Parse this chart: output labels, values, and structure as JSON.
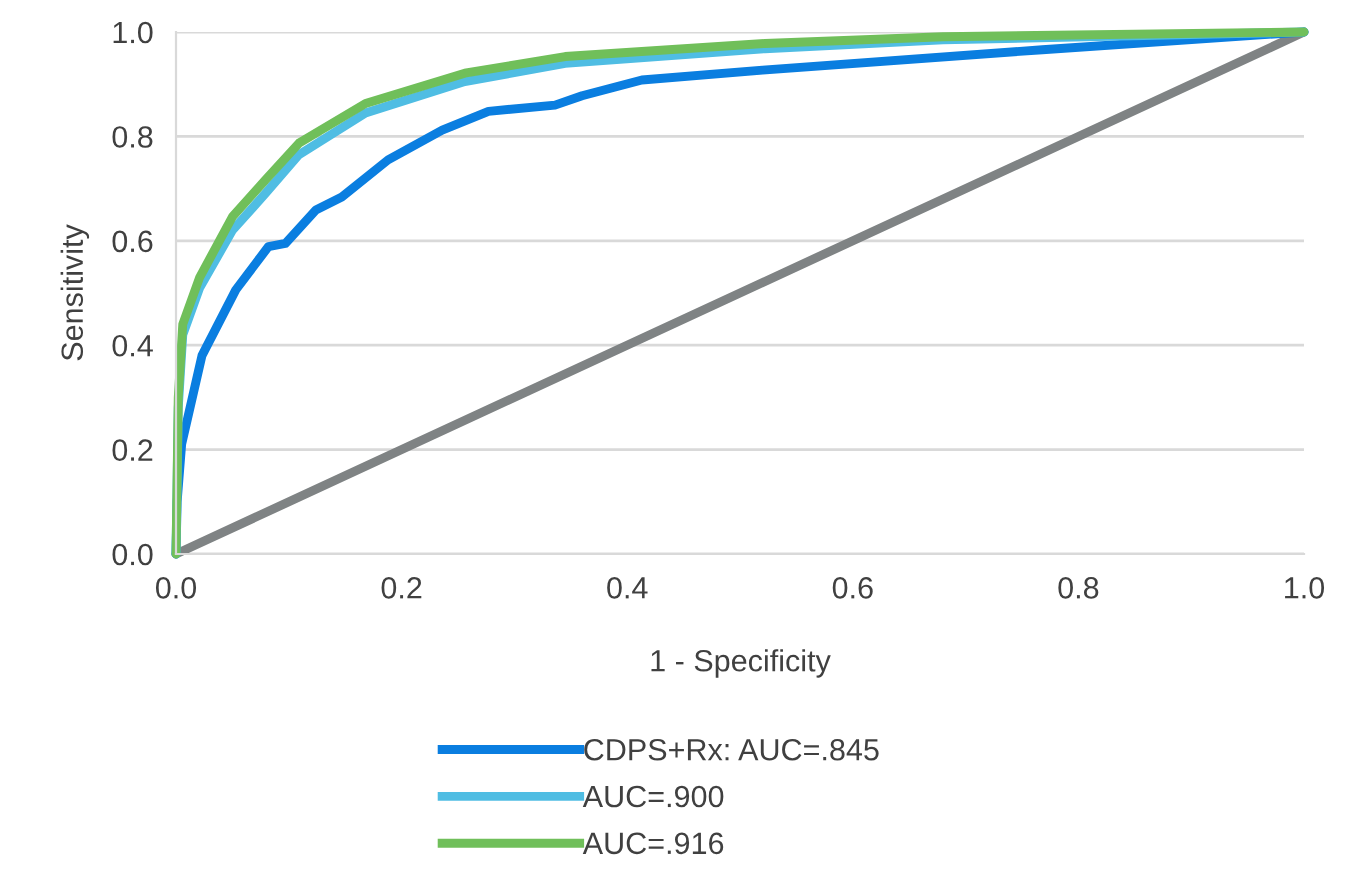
{
  "chart_data": {
    "type": "line",
    "xlabel": "1 - Specificity",
    "ylabel": "Sensitivity",
    "xlim": [
      0,
      1
    ],
    "ylim": [
      0,
      1
    ],
    "xticks": [
      {
        "value": 0,
        "label": "0.0"
      },
      {
        "value": 0.2,
        "label": "0.2"
      },
      {
        "value": 0.4,
        "label": "0.4"
      },
      {
        "value": 0.6,
        "label": "0.6"
      },
      {
        "value": 0.8,
        "label": "0.8"
      },
      {
        "value": 1,
        "label": "1.0"
      }
    ],
    "yticks": [
      {
        "value": 0,
        "label": "0.0"
      },
      {
        "value": 0.2,
        "label": "0.2"
      },
      {
        "value": 0.4,
        "label": "0.4"
      },
      {
        "value": 0.6,
        "label": "0.6"
      },
      {
        "value": 0.8,
        "label": "0.8"
      },
      {
        "value": 1,
        "label": "1.0"
      }
    ],
    "grid": "y",
    "legend": "bottom",
    "marker": "none",
    "line_style": "solid",
    "series": [
      {
        "color": "#7f8384",
        "x": [
          0,
          1
        ],
        "values": [
          0,
          1
        ]
      },
      {
        "name": "CDPS+Rx: AUC=.845",
        "color": "#0a7ee0",
        "x": [
          0,
          0.001,
          0.005,
          0.023,
          0.053,
          0.082,
          0.097,
          0.124,
          0.147,
          0.188,
          0.236,
          0.277,
          0.336,
          0.36,
          0.413,
          0.52,
          0.768,
          1
        ],
        "values": [
          0,
          0.1,
          0.21,
          0.38,
          0.506,
          0.589,
          0.595,
          0.659,
          0.684,
          0.755,
          0.812,
          0.848,
          0.86,
          0.878,
          0.908,
          0.927,
          0.966,
          1
        ]
      },
      {
        "name": "AUC=.900",
        "color": "#4fbde3",
        "x": [
          0,
          0.002,
          0.006,
          0.021,
          0.05,
          0.079,
          0.109,
          0.168,
          0.256,
          0.345,
          0.522,
          0.68,
          1
        ],
        "values": [
          0,
          0.28,
          0.42,
          0.51,
          0.62,
          0.69,
          0.765,
          0.845,
          0.905,
          0.94,
          0.968,
          0.985,
          1
        ]
      },
      {
        "name": "AUC=.916",
        "color": "#70bf5a",
        "x": [
          0,
          0.002,
          0.006,
          0.021,
          0.05,
          0.079,
          0.109,
          0.168,
          0.256,
          0.345,
          0.522,
          0.68,
          1
        ],
        "values": [
          0,
          0.3,
          0.44,
          0.53,
          0.646,
          0.716,
          0.787,
          0.863,
          0.921,
          0.953,
          0.978,
          0.991,
          1
        ]
      }
    ]
  }
}
